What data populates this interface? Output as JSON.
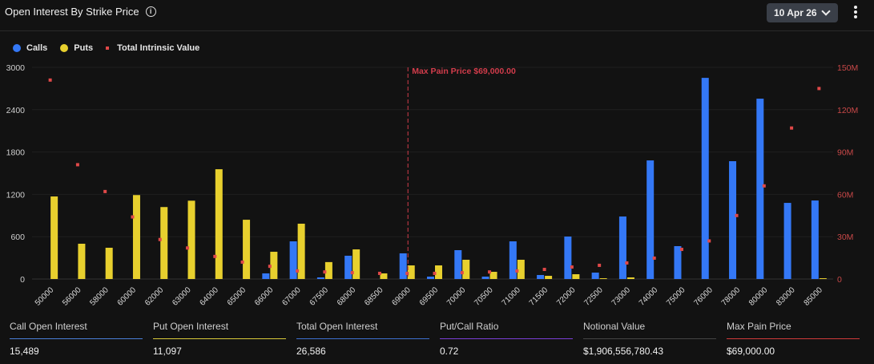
{
  "header": {
    "title": "Open Interest By Strike Price",
    "date_selector": "10 Apr 26",
    "info_icon": "info-icon",
    "more_icon": "more-vertical-icon"
  },
  "colors": {
    "calls": "#3478f6",
    "puts": "#e8d02e",
    "intrinsic": "#e04848",
    "max_pain": "#d23c4b"
  },
  "chart_data": {
    "type": "bar",
    "legend": [
      {
        "name": "Calls"
      },
      {
        "name": "Puts"
      },
      {
        "name": "Total Intrinsic Value"
      }
    ],
    "legend_position": "top-left",
    "categories": [
      "50000",
      "56000",
      "58000",
      "60000",
      "62000",
      "63000",
      "64000",
      "65000",
      "66000",
      "67000",
      "67500",
      "68000",
      "68500",
      "69000",
      "69500",
      "70000",
      "70500",
      "71000",
      "71500",
      "72000",
      "72500",
      "73000",
      "74000",
      "75000",
      "76000",
      "78000",
      "80000",
      "83000",
      "85000"
    ],
    "series": [
      {
        "name": "Calls",
        "axis": "left",
        "values": [
          0,
          0,
          0,
          0,
          0,
          0,
          0,
          0,
          80,
          534,
          23,
          330,
          0,
          364,
          34,
          409,
          34,
          534,
          57,
          602,
          91,
          886,
          1681,
          466,
          2851,
          1670,
          2556,
          1079,
          1113
        ]
      },
      {
        "name": "Puts",
        "axis": "left",
        "values": [
          1170,
          500,
          443,
          1190,
          1020,
          1110,
          1556,
          840,
          386,
          784,
          240,
          420,
          80,
          193,
          193,
          273,
          102,
          273,
          45,
          68,
          11,
          23,
          0,
          0,
          0,
          0,
          0,
          0,
          11
        ]
      },
      {
        "name": "Total Intrinsic Value",
        "axis": "right",
        "type": "scatter",
        "values": [
          141000000,
          81000000,
          62000000,
          44000000,
          28000000,
          22000000,
          16000000,
          12000000,
          9000000,
          5700000,
          5000000,
          4500000,
          4000000,
          4000000,
          4000000,
          4500000,
          5000000,
          5700000,
          6800000,
          8500000,
          9700000,
          11400000,
          14800000,
          21000000,
          27000000,
          45000000,
          66000000,
          107000000,
          135000000
        ]
      }
    ],
    "yleft": {
      "ylim": [
        0,
        3000
      ],
      "ticks": [
        "0",
        "600",
        "1200",
        "1800",
        "2400",
        "3000"
      ]
    },
    "yright": {
      "ylim": [
        0,
        150000000
      ],
      "ticks": [
        "0",
        "30M",
        "60M",
        "90M",
        "120M",
        "150M"
      ]
    },
    "grid": true,
    "annotation": {
      "category": "69000",
      "label": "Max Pain Price $69,000.00"
    }
  },
  "stats": [
    {
      "label": "Call Open Interest",
      "value": "15,489",
      "color": "#4a7fd8"
    },
    {
      "label": "Put Open Interest",
      "value": "11,097",
      "color": "#d9c93a"
    },
    {
      "label": "Total Open Interest",
      "value": "26,586",
      "color": "#3d6fd0"
    },
    {
      "label": "Put/Call Ratio",
      "value": "0.72",
      "color": "#7b3fd6"
    },
    {
      "label": "Notional Value",
      "value": "$1,906,556,780.43",
      "color": "#444444"
    },
    {
      "label": "Max Pain Price",
      "value": "$69,000.00",
      "color": "#d03a3a"
    }
  ]
}
